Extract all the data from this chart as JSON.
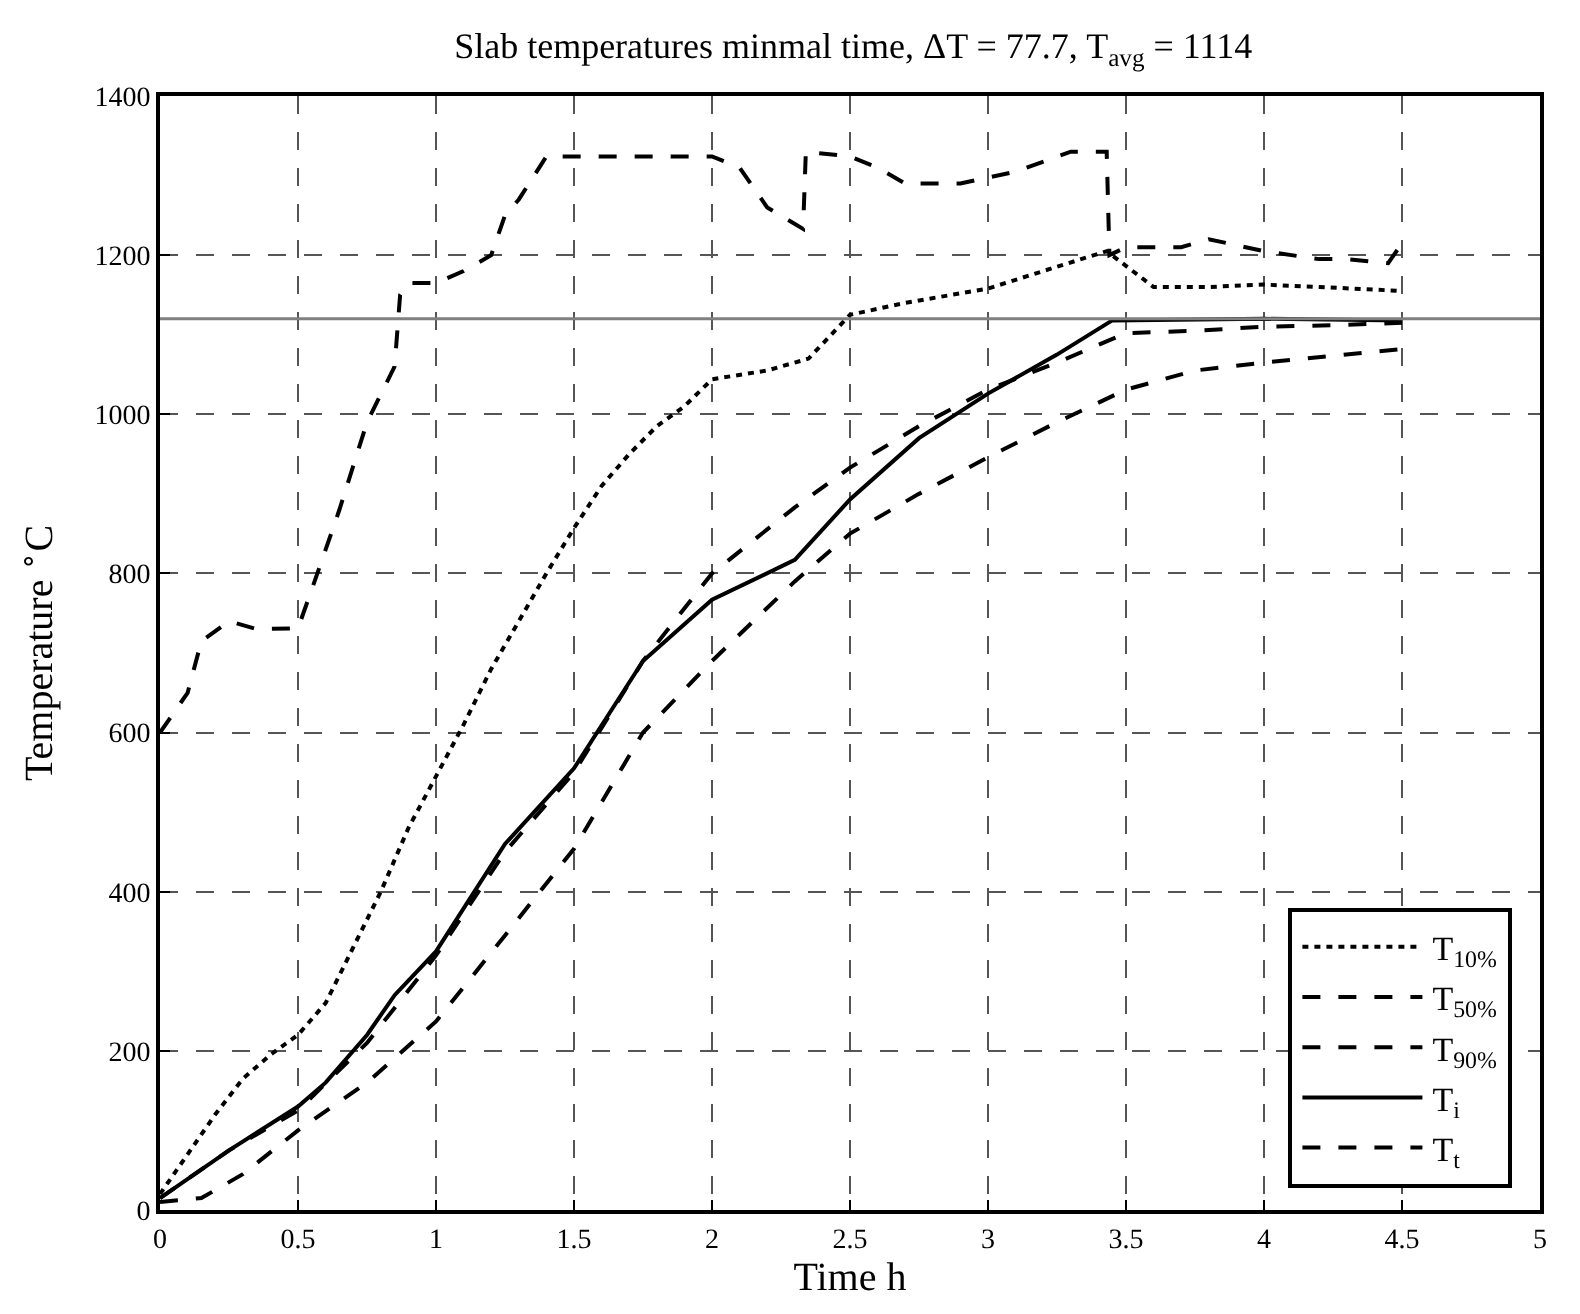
{
  "chart_data": {
    "type": "line",
    "title": "Slab temperatures minmal time, ΔT = 77.7, T$_{avg}$ = 1114",
    "xlabel": "Time h",
    "ylabel": "Temperature $^{∘}$C",
    "xlim": [
      0,
      5
    ],
    "xticks": [
      0,
      0.5,
      1,
      1.5,
      2,
      2.5,
      3,
      3.5,
      4,
      4.5,
      5
    ],
    "ylim": [
      0,
      1400
    ],
    "yticks": [
      0,
      200,
      400,
      600,
      800,
      1000,
      1200,
      1400
    ],
    "grid": true,
    "legend": "bottom right",
    "ref_lines": [
      {
        "axis": "y",
        "value": 1120,
        "color": "#808080",
        "line_style": "solid"
      }
    ],
    "series": [
      {
        "name": "T$_{10%}$",
        "color": "#000000",
        "line_style": "dotted",
        "x": [
          0,
          0.1,
          0.2,
          0.3,
          0.4,
          0.5,
          0.6,
          0.7,
          0.8,
          0.9,
          1.0,
          1.1,
          1.2,
          1.3,
          1.4,
          1.5,
          1.6,
          1.7,
          1.8,
          1.9,
          2.0,
          2.2,
          2.35,
          2.5,
          2.7,
          3.0,
          3.2,
          3.43,
          3.6,
          3.8,
          4.0,
          4.2,
          4.5
        ],
        "values": [
          20,
          70,
          120,
          165,
          195,
          220,
          260,
          330,
          400,
          480,
          545,
          610,
          680,
          740,
          800,
          857,
          910,
          950,
          985,
          1010,
          1044,
          1055,
          1070,
          1125,
          1140,
          1158,
          1180,
          1205,
          1160,
          1160,
          1163,
          1160,
          1155
        ]
      },
      {
        "name": "T$_{50%}$",
        "color": "#000000",
        "line_style": "dashed",
        "x": [
          0,
          0.25,
          0.5,
          0.75,
          1.0,
          1.25,
          1.5,
          1.75,
          2.0,
          2.3,
          2.5,
          2.75,
          3.0,
          3.25,
          3.5,
          3.75,
          4.0,
          4.25,
          4.5
        ],
        "values": [
          15,
          75,
          125,
          210,
          320,
          450,
          550,
          690,
          800,
          883,
          933,
          985,
          1031,
          1065,
          1102,
          1105,
          1110,
          1112,
          1115
        ]
      },
      {
        "name": "T$_{90%}$",
        "color": "#000000",
        "line_style": "dashed",
        "x": [
          0,
          0.15,
          0.3,
          0.5,
          0.75,
          1.0,
          1.25,
          1.5,
          1.75,
          2.0,
          2.3,
          2.5,
          2.75,
          3.0,
          3.25,
          3.5,
          3.75,
          4.0,
          4.5
        ],
        "values": [
          10,
          15,
          45,
          100,
          160,
          237,
          345,
          454,
          600,
          690,
          790,
          850,
          900,
          946,
          990,
          1031,
          1055,
          1065,
          1082
        ]
      },
      {
        "name": "T$_{i}$",
        "color": "#000000",
        "line_style": "solid",
        "x": [
          0,
          0.25,
          0.5,
          0.6,
          0.75,
          0.85,
          1.0,
          1.25,
          1.5,
          1.75,
          2.0,
          2.3,
          2.5,
          2.75,
          3.0,
          3.25,
          3.45,
          4.0,
          4.5
        ],
        "values": [
          15,
          75,
          130,
          160,
          220,
          270,
          325,
          460,
          555,
          690,
          767,
          817,
          893,
          970,
          1026,
          1075,
          1118,
          1120,
          1118
        ]
      },
      {
        "name": "T$_{t}$",
        "color": "#000000",
        "line_style": "dashed",
        "x": [
          0,
          0.1,
          0.15,
          0.25,
          0.35,
          0.5,
          0.55,
          0.65,
          0.75,
          0.85,
          0.87,
          0.9,
          1.0,
          1.1,
          1.2,
          1.25,
          1.3,
          1.4,
          1.5,
          2.0,
          2.1,
          2.2,
          2.33,
          2.34,
          2.5,
          2.6,
          2.7,
          2.9,
          3.1,
          3.3,
          3.43,
          3.44,
          3.5,
          3.7,
          3.8,
          4.0,
          4.2,
          4.3,
          4.45,
          4.5
        ],
        "values": [
          600,
          650,
          715,
          740,
          730,
          731,
          780,
          880,
          990,
          1060,
          1150,
          1165,
          1165,
          1180,
          1200,
          1250,
          1270,
          1324,
          1324,
          1324,
          1310,
          1260,
          1233,
          1330,
          1324,
          1310,
          1290,
          1290,
          1305,
          1330,
          1330,
          1200,
          1210,
          1210,
          1220,
          1205,
          1195,
          1195,
          1190,
          1215
        ]
      }
    ]
  }
}
